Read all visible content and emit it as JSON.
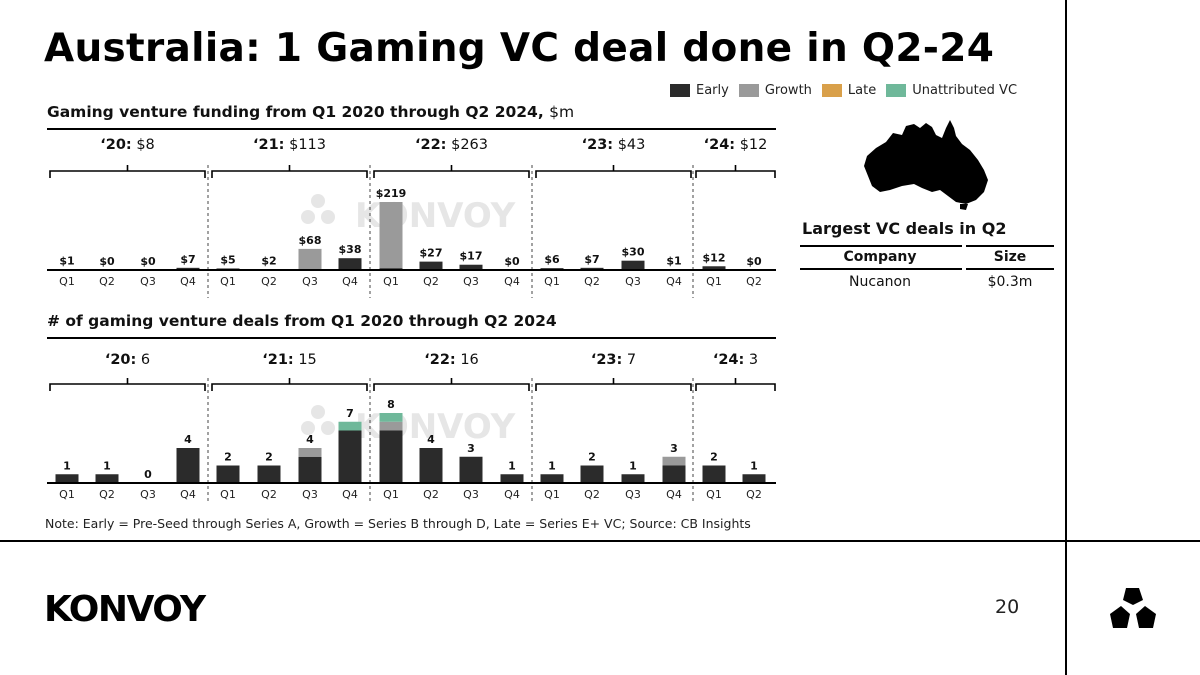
{
  "title": "Australia: 1 Gaming VC deal done in Q2-24",
  "legend": [
    {
      "label": "Early",
      "color": "#2b2b2b"
    },
    {
      "label": "Growth",
      "color": "#9a9a9a"
    },
    {
      "label": "Late",
      "color": "#d9a04a"
    },
    {
      "label": "Unattributed VC",
      "color": "#6fb89a"
    }
  ],
  "funding_title": "Gaming venture funding from Q1 2020 through Q2 2024,",
  "funding_unit": "$m",
  "deals_title": "# of gaming venture deals from Q1 2020 through Q2 2024",
  "watermark": "KONVOY",
  "chart_data": [
    {
      "type": "bar",
      "title": "Gaming venture funding from Q1 2020 through Q2 2024, $m",
      "stacked": true,
      "categories": [
        "Q1",
        "Q2",
        "Q3",
        "Q4",
        "Q1",
        "Q2",
        "Q3",
        "Q4",
        "Q1",
        "Q2",
        "Q3",
        "Q4",
        "Q1",
        "Q2",
        "Q3",
        "Q4",
        "Q1",
        "Q2"
      ],
      "series": [
        {
          "name": "Early",
          "values": [
            1,
            0,
            0,
            7,
            5,
            2,
            0,
            38,
            6,
            27,
            17,
            0,
            6,
            7,
            30,
            1,
            12,
            0
          ]
        },
        {
          "name": "Growth",
          "values": [
            0,
            0,
            0,
            0,
            0,
            0,
            68,
            0,
            213,
            0,
            0,
            0,
            0,
            0,
            0,
            0,
            0,
            0
          ]
        },
        {
          "name": "Late",
          "values": [
            0,
            0,
            0,
            0,
            0,
            0,
            0,
            0,
            0,
            0,
            0,
            0,
            0,
            0,
            0,
            0,
            0,
            0
          ]
        },
        {
          "name": "Unattributed VC",
          "values": [
            0,
            0,
            0,
            0,
            0,
            0,
            0,
            0,
            0,
            0,
            0,
            0,
            0,
            0,
            0,
            0,
            0,
            0
          ]
        }
      ],
      "labels": [
        "$1",
        "$0",
        "$0",
        "$7",
        "$5",
        "$2",
        "$68",
        "$38",
        "$219",
        "$27",
        "$17",
        "$0",
        "$6",
        "$7",
        "$30",
        "$1",
        "$12",
        "$0"
      ],
      "years": [
        {
          "year": "‘20:",
          "total": "$8",
          "start": 0,
          "end": 3
        },
        {
          "year": "‘21:",
          "total": "$113",
          "start": 4,
          "end": 7
        },
        {
          "year": "‘22:",
          "total": "$263",
          "start": 8,
          "end": 11
        },
        {
          "year": "‘23:",
          "total": "$43",
          "start": 12,
          "end": 15
        },
        {
          "year": "‘24:",
          "total": "$12",
          "start": 16,
          "end": 17
        }
      ],
      "ylim": [
        0,
        219
      ]
    },
    {
      "type": "bar",
      "title": "# of gaming venture deals from Q1 2020 through Q2 2024",
      "stacked": true,
      "categories": [
        "Q1",
        "Q2",
        "Q3",
        "Q4",
        "Q1",
        "Q2",
        "Q3",
        "Q4",
        "Q1",
        "Q2",
        "Q3",
        "Q4",
        "Q1",
        "Q2",
        "Q3",
        "Q4",
        "Q1",
        "Q2"
      ],
      "series": [
        {
          "name": "Early",
          "values": [
            1,
            1,
            0,
            4,
            2,
            2,
            3,
            6,
            6,
            4,
            3,
            1,
            1,
            2,
            1,
            2,
            2,
            1
          ]
        },
        {
          "name": "Growth",
          "values": [
            0,
            0,
            0,
            0,
            0,
            0,
            1,
            0,
            1,
            0,
            0,
            0,
            0,
            0,
            0,
            1,
            0,
            0
          ]
        },
        {
          "name": "Late",
          "values": [
            0,
            0,
            0,
            0,
            0,
            0,
            0,
            0,
            0,
            0,
            0,
            0,
            0,
            0,
            0,
            0,
            0,
            0
          ]
        },
        {
          "name": "Unattributed VC",
          "values": [
            0,
            0,
            0,
            0,
            0,
            0,
            0,
            1,
            1,
            0,
            0,
            0,
            0,
            0,
            0,
            0,
            0,
            0
          ]
        }
      ],
      "labels": [
        "1",
        "1",
        "0",
        "4",
        "2",
        "2",
        "4",
        "7",
        "8",
        "4",
        "3",
        "1",
        "1",
        "2",
        "1",
        "3",
        "2",
        "1"
      ],
      "years": [
        {
          "year": "‘20:",
          "total": "6",
          "start": 0,
          "end": 3
        },
        {
          "year": "‘21:",
          "total": "15",
          "start": 4,
          "end": 7
        },
        {
          "year": "‘22:",
          "total": "16",
          "start": 8,
          "end": 11
        },
        {
          "year": "‘23:",
          "total": "7",
          "start": 12,
          "end": 15
        },
        {
          "year": "‘24:",
          "total": "3",
          "start": 16,
          "end": 17
        }
      ],
      "ylim": [
        0,
        8
      ]
    }
  ],
  "largest_deals": {
    "title": "Largest VC deals in Q2",
    "headers": [
      "Company",
      "Size"
    ],
    "rows": [
      [
        "Nucanon",
        "$0.3m"
      ]
    ]
  },
  "note": "Note: Early = Pre-Seed through Series A, Growth = Series B through D, Late = Series E+ VC; Source: CB Insights",
  "footer": {
    "brand": "KONVOY",
    "page": "20"
  }
}
